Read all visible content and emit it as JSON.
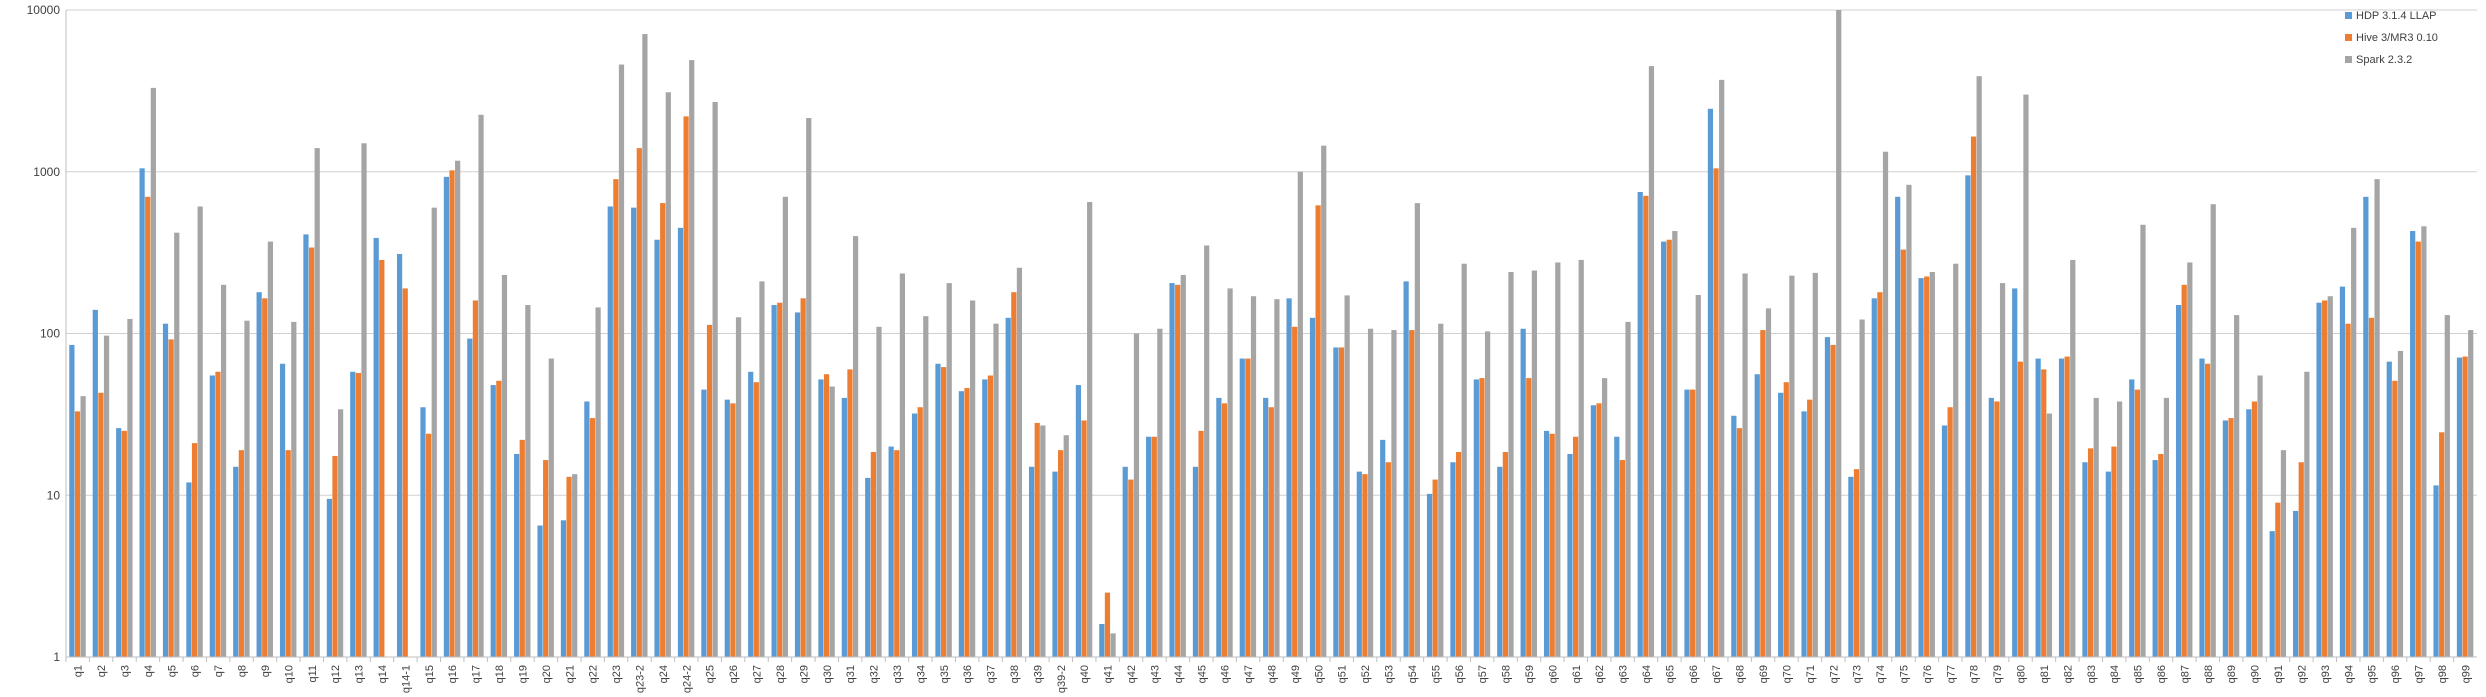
{
  "chart_data": {
    "type": "bar",
    "y_scale": "log",
    "ylim": [
      1,
      10000
    ],
    "y_ticks": [
      "1",
      "10",
      "100",
      "1000",
      "10000"
    ],
    "grid": true,
    "legend_position": "top-right",
    "categories": [
      "q1",
      "q2",
      "q3",
      "q4",
      "q5",
      "q6",
      "q7",
      "q8",
      "q9",
      "q10",
      "q11",
      "q12",
      "q13",
      "q14",
      "q14-1",
      "q15",
      "q16",
      "q17",
      "q18",
      "q19",
      "q20",
      "q21",
      "q22",
      "q23",
      "q23-2",
      "q24",
      "q24-2",
      "q25",
      "q26",
      "q27",
      "q28",
      "q29",
      "q30",
      "q31",
      "q32",
      "q33",
      "q34",
      "q35",
      "q36",
      "q37",
      "q38",
      "q39",
      "q39-2",
      "q40",
      "q41",
      "q42",
      "q43",
      "q44",
      "q45",
      "q46",
      "q47",
      "q48",
      "q49",
      "q50",
      "q51",
      "q52",
      "q53",
      "q54",
      "q55",
      "q56",
      "q57",
      "q58",
      "q59",
      "q60",
      "q61",
      "q62",
      "q63",
      "q64",
      "q65",
      "q66",
      "q67",
      "q68",
      "q69",
      "q70",
      "q71",
      "q72",
      "q73",
      "q74",
      "q75",
      "q76",
      "q77",
      "q78",
      "q79",
      "q80",
      "q81",
      "q82",
      "q83",
      "q84",
      "q85",
      "q86",
      "q87",
      "q88",
      "q89",
      "q90",
      "q91",
      "q92",
      "q93",
      "q94",
      "q95",
      "q96",
      "q97",
      "q98",
      "q99"
    ],
    "series": [
      {
        "name": "HDP 3.1.4 LLAP",
        "color": "#5b9bd5",
        "values": [
          85,
          140,
          26,
          1050,
          115,
          12,
          55,
          15,
          180,
          65,
          410,
          9.5,
          58,
          390,
          310,
          35,
          930,
          93,
          48,
          18,
          6.5,
          7,
          38,
          610,
          600,
          380,
          450,
          45,
          39,
          58,
          150,
          135,
          52,
          40,
          12.8,
          20,
          32,
          65,
          44,
          52,
          125,
          15,
          14,
          48,
          1.6,
          15,
          23,
          205,
          15,
          40,
          70,
          40,
          165,
          125,
          82,
          14,
          22,
          210,
          10.2,
          16,
          52,
          15,
          107,
          25,
          18,
          36,
          23,
          750,
          370,
          45,
          2450,
          31,
          56,
          43,
          33,
          95,
          13,
          165,
          700,
          220,
          27,
          950,
          40,
          190,
          70,
          70,
          16,
          14,
          52,
          16.5,
          150,
          70,
          29,
          34,
          6,
          8,
          155,
          195,
          700,
          67,
          430,
          11.5,
          71
        ]
      },
      {
        "name": "Hive 3/MR3 0.10",
        "color": "#ed7d31",
        "values": [
          33,
          43,
          25,
          700,
          92,
          21,
          58,
          19,
          165,
          19,
          340,
          17.5,
          57,
          285,
          190,
          24,
          1020,
          160,
          51,
          22,
          16.5,
          13,
          30,
          900,
          1400,
          640,
          2200,
          113,
          37,
          50,
          155,
          165,
          56,
          60,
          18.5,
          19,
          35,
          62,
          46,
          55,
          180,
          28,
          19,
          29,
          2.5,
          12.5,
          23,
          200,
          25,
          37,
          70,
          35,
          110,
          620,
          82,
          13.5,
          16,
          105,
          12.5,
          18.5,
          53,
          18.5,
          53,
          24,
          23,
          37,
          16.5,
          710,
          380,
          45,
          1050,
          26,
          105,
          50,
          39,
          85,
          14.5,
          180,
          330,
          225,
          35,
          1650,
          38,
          67,
          60,
          72,
          19.5,
          20,
          45,
          18,
          200,
          65,
          30,
          38,
          9,
          16,
          160,
          115,
          125,
          51,
          370,
          24.5,
          72
        ]
      },
      {
        "name": "Spark 2.3.2",
        "color": "#a5a5a5",
        "values": [
          41,
          97,
          123,
          3300,
          420,
          610,
          200,
          120,
          370,
          118,
          1400,
          34,
          1500,
          0,
          0,
          600,
          1170,
          2250,
          230,
          150,
          70,
          13.5,
          145,
          4600,
          7100,
          3100,
          4900,
          2700,
          126,
          210,
          700,
          2150,
          47,
          400,
          110,
          235,
          128,
          205,
          160,
          115,
          255,
          27,
          23.5,
          650,
          1.4,
          100,
          107,
          230,
          350,
          190,
          170,
          163,
          1000,
          1450,
          172,
          107,
          105,
          640,
          115,
          270,
          103,
          240,
          245,
          275,
          285,
          53,
          118,
          4500,
          430,
          173,
          3700,
          235,
          143,
          228,
          237,
          10000,
          122,
          1330,
          830,
          240,
          270,
          3900,
          205,
          3000,
          32,
          285,
          40,
          38,
          470,
          40,
          275,
          630,
          130,
          55,
          19,
          58,
          170,
          450,
          900,
          78,
          460,
          130,
          105
        ]
      }
    ]
  }
}
